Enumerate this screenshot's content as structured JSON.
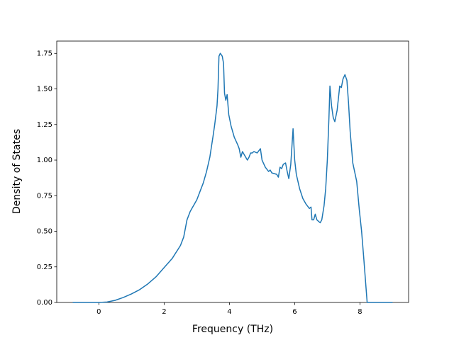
{
  "chart_data": {
    "type": "line",
    "xlabel": "Frequency (THz)",
    "ylabel": "Density of States",
    "x": [
      -0.8,
      0,
      0.25,
      0.5,
      0.75,
      1.0,
      1.25,
      1.5,
      1.75,
      2.0,
      2.25,
      2.5,
      2.6,
      2.7,
      2.8,
      3.0,
      3.2,
      3.3,
      3.4,
      3.5,
      3.55,
      3.62,
      3.65,
      3.68,
      3.72,
      3.78,
      3.82,
      3.85,
      3.89,
      3.93,
      3.98,
      4.05,
      4.15,
      4.25,
      4.3,
      4.35,
      4.4,
      4.5,
      4.55,
      4.6,
      4.65,
      4.7,
      4.75,
      4.85,
      4.95,
      5.0,
      5.1,
      5.2,
      5.25,
      5.3,
      5.45,
      5.5,
      5.55,
      5.6,
      5.65,
      5.72,
      5.77,
      5.82,
      5.88,
      5.95,
      6.0,
      6.05,
      6.15,
      6.25,
      6.35,
      6.45,
      6.5,
      6.53,
      6.58,
      6.63,
      6.68,
      6.78,
      6.83,
      6.9,
      6.95,
      7.0,
      7.05,
      7.08,
      7.13,
      7.18,
      7.23,
      7.3,
      7.38,
      7.43,
      7.48,
      7.54,
      7.6,
      7.65,
      7.7,
      7.78,
      7.9,
      7.98,
      8.05,
      8.12,
      8.22,
      9.0
    ],
    "series": [
      {
        "name": "DOS",
        "color": "#1f77b4",
        "values": [
          0,
          0,
          0.003,
          0.015,
          0.035,
          0.06,
          0.09,
          0.13,
          0.18,
          0.245,
          0.31,
          0.4,
          0.46,
          0.58,
          0.64,
          0.72,
          0.84,
          0.92,
          1.02,
          1.17,
          1.25,
          1.38,
          1.5,
          1.73,
          1.75,
          1.73,
          1.68,
          1.47,
          1.42,
          1.46,
          1.32,
          1.24,
          1.16,
          1.11,
          1.08,
          1.02,
          1.06,
          1.02,
          1.0,
          1.02,
          1.05,
          1.05,
          1.06,
          1.05,
          1.08,
          1.0,
          0.95,
          0.92,
          0.93,
          0.91,
          0.9,
          0.88,
          0.95,
          0.94,
          0.97,
          0.98,
          0.92,
          0.87,
          0.97,
          1.22,
          1.0,
          0.9,
          0.8,
          0.73,
          0.69,
          0.66,
          0.67,
          0.58,
          0.58,
          0.62,
          0.58,
          0.56,
          0.58,
          0.68,
          0.8,
          1.0,
          1.3,
          1.52,
          1.38,
          1.3,
          1.27,
          1.35,
          1.52,
          1.51,
          1.57,
          1.6,
          1.56,
          1.4,
          1.2,
          0.98,
          0.85,
          0.65,
          0.5,
          0.3,
          0.0,
          0
        ]
      }
    ],
    "xlim": [
      -1.29,
      9.49
    ],
    "ylim": [
      0,
      1.836
    ],
    "xticks": [
      0,
      2,
      4,
      6,
      8
    ],
    "yticks": [
      {
        "value": 0,
        "label": "0.00"
      },
      {
        "value": 0.25,
        "label": "0.25"
      },
      {
        "value": 0.5,
        "label": "0.50"
      },
      {
        "value": 0.75,
        "label": "0.75"
      },
      {
        "value": 1.0,
        "label": "1.00"
      },
      {
        "value": 1.25,
        "label": "1.25"
      },
      {
        "value": 1.5,
        "label": "1.50"
      },
      {
        "value": 1.75,
        "label": "1.75"
      }
    ]
  }
}
